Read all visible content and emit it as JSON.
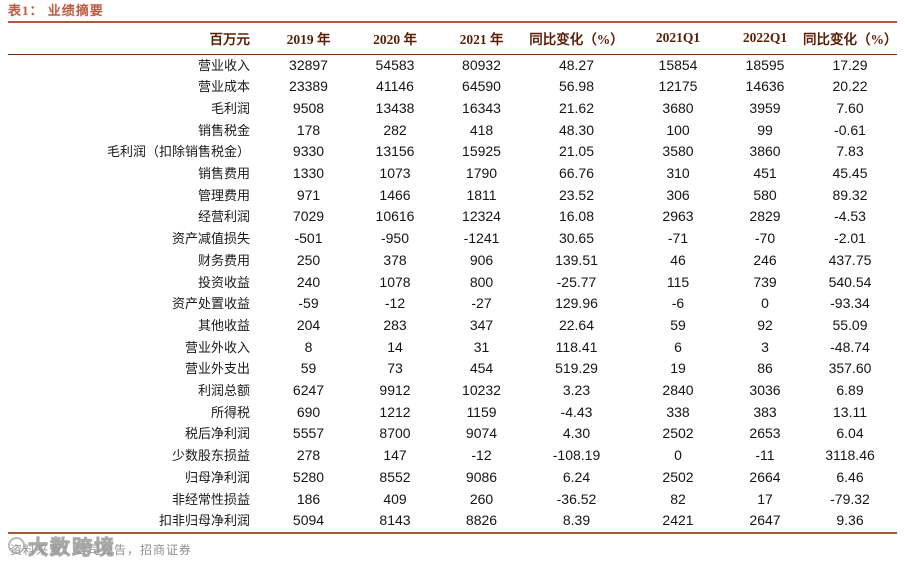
{
  "title": "表1： 业绩摘要",
  "table": {
    "columns": [
      "百万元",
      "2019 年",
      "2020 年",
      "2021 年",
      "同比变化（%）",
      "2021Q1",
      "2022Q1",
      "同比变化（%）"
    ],
    "rows": [
      {
        "label": "营业收入",
        "values": [
          "32897",
          "54583",
          "80932",
          "48.27",
          "15854",
          "18595",
          "17.29"
        ]
      },
      {
        "label": "营业成本",
        "values": [
          "23389",
          "41146",
          "64590",
          "56.98",
          "12175",
          "14636",
          "20.22"
        ]
      },
      {
        "label": "毛利润",
        "values": [
          "9508",
          "13438",
          "16343",
          "21.62",
          "3680",
          "3959",
          "7.60"
        ]
      },
      {
        "label": "销售税金",
        "values": [
          "178",
          "282",
          "418",
          "48.30",
          "100",
          "99",
          "-0.61"
        ]
      },
      {
        "label": "毛利润（扣除销售税金）",
        "values": [
          "9330",
          "13156",
          "15925",
          "21.05",
          "3580",
          "3860",
          "7.83"
        ]
      },
      {
        "label": "销售费用",
        "values": [
          "1330",
          "1073",
          "1790",
          "66.76",
          "310",
          "451",
          "45.45"
        ]
      },
      {
        "label": "管理费用",
        "values": [
          "971",
          "1466",
          "1811",
          "23.52",
          "306",
          "580",
          "89.32"
        ]
      },
      {
        "label": "经营利润",
        "values": [
          "7029",
          "10616",
          "12324",
          "16.08",
          "2963",
          "2829",
          "-4.53"
        ]
      },
      {
        "label": "资产减值损失",
        "values": [
          "-501",
          "-950",
          "-1241",
          "30.65",
          "-71",
          "-70",
          "-2.01"
        ]
      },
      {
        "label": "财务费用",
        "values": [
          "250",
          "378",
          "906",
          "139.51",
          "46",
          "246",
          "437.75"
        ]
      },
      {
        "label": "投资收益",
        "values": [
          "240",
          "1078",
          "800",
          "-25.77",
          "115",
          "739",
          "540.54"
        ]
      },
      {
        "label": "资产处置收益",
        "values": [
          "-59",
          "-12",
          "-27",
          "129.96",
          "-6",
          "0",
          "-93.34"
        ]
      },
      {
        "label": "其他收益",
        "values": [
          "204",
          "283",
          "347",
          "22.64",
          "59",
          "92",
          "55.09"
        ]
      },
      {
        "label": "营业外收入",
        "values": [
          "8",
          "14",
          "31",
          "118.41",
          "6",
          "3",
          "-48.74"
        ]
      },
      {
        "label": "营业外支出",
        "values": [
          "59",
          "73",
          "454",
          "519.29",
          "19",
          "86",
          "357.60"
        ]
      },
      {
        "label": "利润总额",
        "values": [
          "6247",
          "9912",
          "10232",
          "3.23",
          "2840",
          "3036",
          "6.89"
        ]
      },
      {
        "label": "所得税",
        "values": [
          "690",
          "1212",
          "1159",
          "-4.43",
          "338",
          "383",
          "13.11"
        ]
      },
      {
        "label": "税后净利润",
        "values": [
          "5557",
          "8700",
          "9074",
          "4.30",
          "2502",
          "2653",
          "6.04"
        ]
      },
      {
        "label": "少数股东损益",
        "values": [
          "278",
          "147",
          "-12",
          "-108.19",
          "0",
          "-11",
          "3118.46"
        ]
      },
      {
        "label": "归母净利润",
        "values": [
          "5280",
          "8552",
          "9086",
          "6.24",
          "2502",
          "2664",
          "6.46"
        ]
      },
      {
        "label": "非经常性损益",
        "values": [
          "186",
          "409",
          "260",
          "-36.52",
          "82",
          "17",
          "-79.32"
        ]
      },
      {
        "label": "扣非归母净利润",
        "values": [
          "5094",
          "8143",
          "8826",
          "8.39",
          "2421",
          "2647",
          "9.36"
        ]
      }
    ]
  },
  "footer": {
    "source": "资料来源：公司公告，招商证券"
  },
  "watermark": {
    "text": "大数跨境"
  },
  "colors": {
    "title_text": "#bc5b41",
    "title_rule": "#b5573a",
    "header_text": "#5a1e05",
    "header_rule": "#7a2e10",
    "bottom_rule": "#9e5a3c",
    "body_text": "#141414",
    "source_text": "#8f8f8f"
  }
}
